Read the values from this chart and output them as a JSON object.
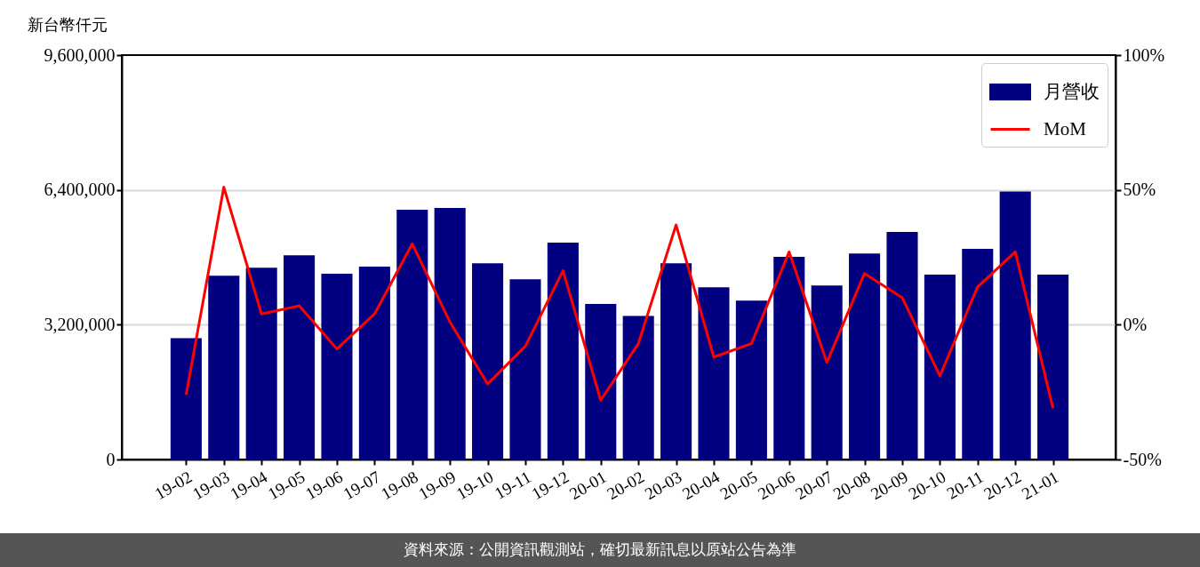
{
  "chart_data": {
    "type": "bar",
    "ylabel": "新台幣仟元",
    "categories": [
      "19-02",
      "19-03",
      "19-04",
      "19-05",
      "19-06",
      "19-07",
      "19-08",
      "19-09",
      "19-10",
      "19-11",
      "19-12",
      "20-01",
      "20-02",
      "20-03",
      "20-04",
      "20-05",
      "20-06",
      "20-07",
      "20-08",
      "20-09",
      "20-10",
      "20-11",
      "20-12",
      "21-01"
    ],
    "series": [
      {
        "name": "月營收",
        "color": "#000080",
        "values": [
          2880000,
          4360000,
          4550000,
          4850000,
          4410000,
          4580000,
          5930000,
          5970000,
          4660000,
          4280000,
          5150000,
          3690000,
          3410000,
          4660000,
          4090000,
          3770000,
          4810000,
          4130000,
          4890000,
          5400000,
          4390000,
          5000000,
          6360000,
          4390000
        ]
      },
      {
        "name": "MoM",
        "type": "line",
        "axis": "y2",
        "color": "#ff0000",
        "line_style": "solid",
        "values": [
          -26,
          51,
          4,
          7,
          -9,
          4,
          30,
          1,
          -22,
          -8,
          20,
          -28,
          -7,
          37,
          -12,
          -7,
          27,
          -14,
          19,
          10,
          -19,
          14,
          27,
          -31
        ]
      }
    ],
    "ylim": [
      0,
      9600000
    ],
    "yticks": [
      0,
      {
        "value": 3200000,
        "label": "3,200,000"
      },
      {
        "value": 6400000,
        "label": "6,400,000"
      },
      {
        "value": 9600000,
        "label": "9,600,000"
      }
    ],
    "y2lim": [
      -50,
      100
    ],
    "y2ticks": [
      {
        "value": -50,
        "label": "-50%"
      },
      {
        "value": 0,
        "label": "0%"
      },
      {
        "value": 50,
        "label": "50%"
      },
      {
        "value": 100,
        "label": "100%"
      }
    ],
    "grid": "y",
    "legend": "top right",
    "annotations": [
      "資料來源：公開資訊觀測站，確切最新訊息以原站公告為準"
    ]
  }
}
